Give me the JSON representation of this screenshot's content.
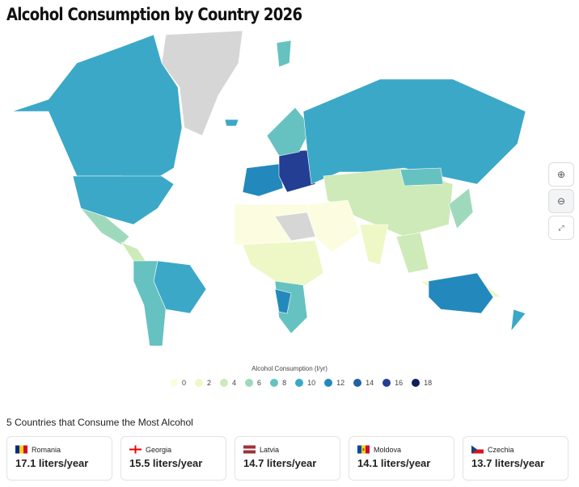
{
  "title": "Alcohol Consumption by Country 2026",
  "controls": {
    "zoom_in": "zoom-in-icon",
    "zoom_out": "zoom-out-icon",
    "fullscreen": "fullscreen-icon"
  },
  "legend": {
    "title": "Alcohol Consumption (l/yr)",
    "items": [
      {
        "label": "0",
        "color": "#fcfde0"
      },
      {
        "label": "2",
        "color": "#eef7c6"
      },
      {
        "label": "4",
        "color": "#cdeab8"
      },
      {
        "label": "6",
        "color": "#9fd9bb"
      },
      {
        "label": "8",
        "color": "#66c2c0"
      },
      {
        "label": "10",
        "color": "#3ba8c8"
      },
      {
        "label": "12",
        "color": "#2389bd"
      },
      {
        "label": "14",
        "color": "#2260a8"
      },
      {
        "label": "16",
        "color": "#233e93"
      },
      {
        "label": "18",
        "color": "#0f1f5c"
      }
    ]
  },
  "top_heading": "5 Countries that Consume the Most Alcohol",
  "top": [
    {
      "country": "Romania",
      "value": "17.1 liters/year"
    },
    {
      "country": "Georgia",
      "value": "15.5 liters/year"
    },
    {
      "country": "Latvia",
      "value": "14.7 liters/year"
    },
    {
      "country": "Moldova",
      "value": "14.1 liters/year"
    },
    {
      "country": "Czechia",
      "value": "13.7 liters/year"
    }
  ]
}
